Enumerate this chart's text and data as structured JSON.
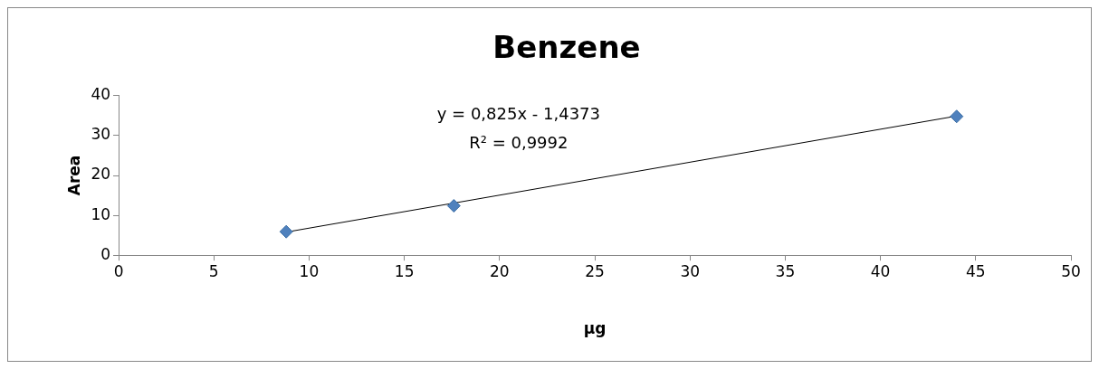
{
  "chart_data": {
    "type": "scatter",
    "title": "Benzene",
    "xlabel": "µg",
    "ylabel": "Area",
    "xlim": [
      0,
      50
    ],
    "xticks": [
      0,
      5,
      10,
      15,
      20,
      25,
      30,
      35,
      40,
      45,
      50
    ],
    "ylim": [
      0,
      40
    ],
    "yticks": [
      0,
      10,
      20,
      30,
      40
    ],
    "series": [
      {
        "type": "scatter",
        "color": "#4f81bd",
        "x": [
          8.8,
          17.6,
          44
        ],
        "values": [
          5.9,
          12.4,
          34.8
        ],
        "marker": "diamond"
      },
      {
        "type": "line",
        "color": "#000000",
        "x": [
          8.8,
          44
        ],
        "values": [
          5.8,
          34.9
        ],
        "marker": "none",
        "line_style": "solid"
      }
    ],
    "annotations": [
      "y = 0,825x - 1,4373",
      "R² = 0,9992"
    ],
    "grid": false,
    "legend": false
  }
}
